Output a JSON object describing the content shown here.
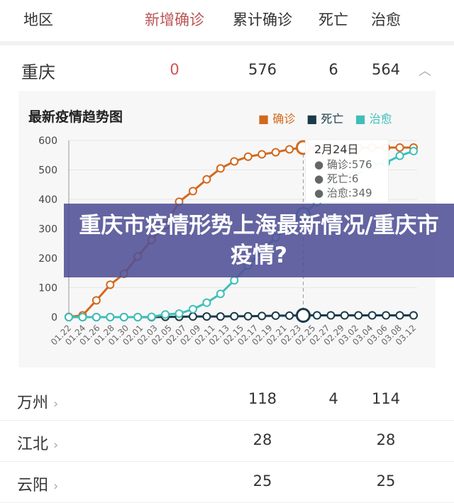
{
  "header": {
    "cols": [
      "地区",
      "新增确诊",
      "累计确诊",
      "死亡",
      "治愈"
    ]
  },
  "region": {
    "name": "重庆",
    "new": "0",
    "total": "576",
    "deaths": "6",
    "cured": "564"
  },
  "chart_data": {
    "type": "line",
    "title": "最新疫情趋势图",
    "legend": [
      "确诊",
      "死亡",
      "治愈"
    ],
    "legend_position": "top-right",
    "colors": [
      "#d2691e",
      "#1a3a4a",
      "#3fbfb8"
    ],
    "yticks": [
      "0",
      "100",
      "200",
      "300",
      "400",
      "500",
      "600"
    ],
    "ylim": [
      0,
      600
    ],
    "xticks": [
      "01.22",
      "01.24",
      "01.26",
      "01.28",
      "01.30",
      "02.01",
      "02.03",
      "02.05",
      "02.07",
      "02.09",
      "02.11",
      "02.13",
      "02.15",
      "02.17",
      "02.19",
      "02.21",
      "02.23",
      "02.25",
      "02.27",
      "02.29",
      "03.02",
      "03.04",
      "03.06",
      "03.08",
      "03.12"
    ],
    "series": [
      {
        "name": "确诊",
        "values": [
          1,
          6,
          57,
          110,
          147,
          206,
          262,
          312,
          392,
          428,
          468,
          505,
          529,
          545,
          553,
          560,
          570,
          576,
          576,
          576,
          576,
          576,
          576,
          576,
          576,
          576
        ]
      },
      {
        "name": "死亡",
        "values": [
          0,
          0,
          0,
          0,
          0,
          0,
          0,
          1,
          1,
          2,
          2,
          2,
          3,
          3,
          4,
          5,
          5,
          6,
          6,
          6,
          6,
          6,
          6,
          6,
          6,
          6
        ]
      },
      {
        "name": "治愈",
        "values": [
          0,
          0,
          0,
          0,
          0,
          0,
          1,
          9,
          12,
          27,
          49,
          79,
          125,
          175,
          225,
          270,
          310,
          349,
          390,
          440,
          480,
          500,
          515,
          525,
          548,
          564
        ]
      }
    ],
    "highlight_index": 17,
    "tooltip": {
      "date": "2月24日",
      "lines": [
        "确诊:576",
        "死亡:6",
        "治愈:349"
      ]
    }
  },
  "banner": "重庆市疫情形势上海最新情况/重庆市疫情?",
  "subregions": [
    {
      "name": "万州",
      "total": "118",
      "deaths": "4",
      "cured": "114"
    },
    {
      "name": "江北",
      "total": "28",
      "deaths": "",
      "cured": "28"
    },
    {
      "name": "云阳",
      "total": "25",
      "deaths": "",
      "cured": "25"
    }
  ]
}
